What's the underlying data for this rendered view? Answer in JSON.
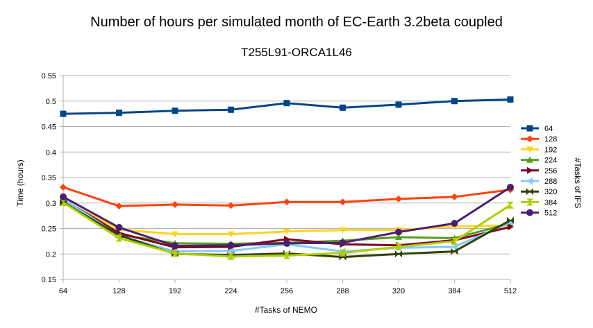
{
  "chart_data": {
    "type": "line",
    "title": "Number of hours per simulated month of EC-Earth 3.2beta coupled",
    "subtitle": "T255L91-ORCA1L46",
    "xlabel": "#Tasks of NEMO",
    "ylabel": "Time (hours)",
    "legend_title": "#Tasks of IFS",
    "legend_position": "right",
    "grid": "horizontal",
    "categories": [
      "64",
      "128",
      "192",
      "224",
      "256",
      "288",
      "320",
      "384",
      "512"
    ],
    "ylim": [
      0.15,
      0.55
    ],
    "yticks": [
      "0.15",
      "0.2",
      "0.25",
      "0.3",
      "0.35",
      "0.4",
      "0.45",
      "0.5",
      "0.55"
    ],
    "series": [
      {
        "name": "64",
        "color": "#004586",
        "marker": "square",
        "values": [
          0.475,
          0.477,
          0.481,
          0.483,
          0.496,
          0.487,
          0.493,
          0.5,
          0.503
        ]
      },
      {
        "name": "128",
        "color": "#ff420e",
        "marker": "diamond",
        "values": [
          0.331,
          0.294,
          0.297,
          0.295,
          0.302,
          0.302,
          0.308,
          0.312,
          0.326
        ]
      },
      {
        "name": "192",
        "color": "#ffd320",
        "marker": "triangle-down",
        "values": [
          0.305,
          0.248,
          0.239,
          0.239,
          0.244,
          0.247,
          0.247,
          0.254,
          0.256
        ]
      },
      {
        "name": "224",
        "color": "#579d1c",
        "marker": "triangle-up",
        "values": [
          0.303,
          0.238,
          0.221,
          0.22,
          0.222,
          0.226,
          0.233,
          0.231,
          0.26
        ]
      },
      {
        "name": "256",
        "color": "#7e0021",
        "marker": "triangle-right",
        "values": [
          0.307,
          0.241,
          0.213,
          0.214,
          0.229,
          0.219,
          0.217,
          0.227,
          0.253
        ]
      },
      {
        "name": "288",
        "color": "#83caff",
        "marker": "triangle-left",
        "values": [
          0.308,
          0.236,
          0.205,
          0.206,
          0.219,
          0.205,
          0.212,
          0.214,
          0.262
        ]
      },
      {
        "name": "320",
        "color": "#314004",
        "marker": "bowtie",
        "values": [
          0.301,
          0.237,
          0.2,
          0.198,
          0.201,
          0.194,
          0.2,
          0.205,
          0.266
        ]
      },
      {
        "name": "384",
        "color": "#aecf00",
        "marker": "hourglass",
        "values": [
          0.301,
          0.231,
          0.201,
          0.195,
          0.197,
          0.202,
          0.214,
          0.225,
          0.296
        ]
      },
      {
        "name": "512",
        "color": "#4b1f6f",
        "marker": "circle",
        "values": [
          0.312,
          0.252,
          0.216,
          0.217,
          0.221,
          0.222,
          0.243,
          0.26,
          0.331
        ]
      }
    ]
  }
}
